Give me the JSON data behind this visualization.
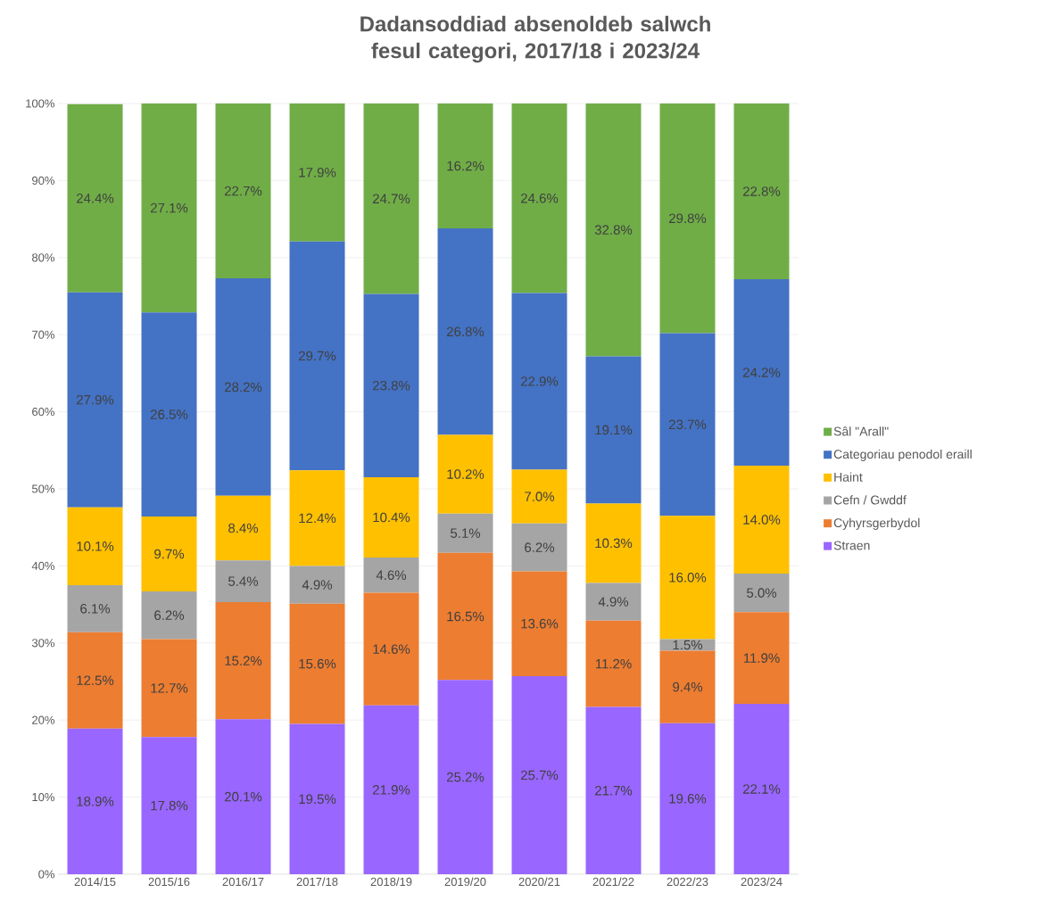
{
  "chart_data": {
    "type": "bar",
    "stacked": true,
    "title": "Dadansoddiad absenoldeb salwch fesul categori, 2017/18 i 2023/24",
    "categories": [
      "2014/15",
      "2015/16",
      "2016/17",
      "2017/18",
      "2018/19",
      "2019/20",
      "2020/21",
      "2021/22",
      "2022/23",
      "2023/24"
    ],
    "series": [
      {
        "name": "Straen",
        "color": "#9966ff",
        "values": [
          18.9,
          17.8,
          20.1,
          19.5,
          21.9,
          25.2,
          25.7,
          21.7,
          19.6,
          22.1
        ],
        "value_labels": [
          "18.9%",
          "17.8%",
          "20.1%",
          "19.5%",
          "21.9%",
          "25.2%",
          "25.7%",
          "21.7%",
          "19.6%",
          "22.1%"
        ]
      },
      {
        "name": "Cyhyrsgerbydol",
        "color": "#ed7d31",
        "values": [
          12.5,
          12.7,
          15.2,
          15.6,
          14.6,
          16.5,
          13.6,
          11.2,
          9.4,
          11.9
        ],
        "value_labels": [
          "12.5%",
          "12.7%",
          "15.2%",
          "15.6%",
          "14.6%",
          "16.5%",
          "13.6%",
          "11.2%",
          "9.4%",
          "11.9%"
        ]
      },
      {
        "name": "Cefn / Gwddf",
        "color": "#a5a5a5",
        "values": [
          6.1,
          6.2,
          5.4,
          4.9,
          4.6,
          5.1,
          6.2,
          4.9,
          1.5,
          5.0
        ],
        "value_labels": [
          "6.1%",
          "6.2%",
          "5.4%",
          "4.9%",
          "4.6%",
          "5.1%",
          "6.2%",
          "4.9%",
          "1.5%",
          "5.0%"
        ]
      },
      {
        "name": "Haint",
        "color": "#ffc000",
        "values": [
          10.1,
          9.7,
          8.4,
          12.4,
          10.4,
          10.2,
          7.0,
          10.3,
          16.0,
          14.0
        ],
        "value_labels": [
          "10.1%",
          "9.7%",
          "8.4%",
          "12.4%",
          "10.4%",
          "10.2%",
          "7.0%",
          "10.3%",
          "16.0%",
          "14.0%"
        ]
      },
      {
        "name": "Categoriau penodol eraill",
        "color": "#4472c4",
        "values": [
          27.9,
          26.5,
          28.2,
          29.7,
          23.8,
          26.8,
          22.9,
          19.1,
          23.7,
          24.2
        ],
        "value_labels": [
          "27.9%",
          "26.5%",
          "28.2%",
          "29.7%",
          "23.8%",
          "26.8%",
          "22.9%",
          "19.1%",
          "23.7%",
          "24.2%"
        ]
      },
      {
        "name": "Sâl \"Arall\"",
        "color": "#70ad47",
        "values": [
          24.4,
          27.1,
          22.7,
          17.9,
          24.7,
          16.2,
          24.6,
          32.8,
          29.8,
          22.8
        ],
        "value_labels": [
          "24.4%",
          "27.1%",
          "22.7%",
          "17.9%",
          "24.7%",
          "16.2%",
          "24.6%",
          "32.8%",
          "29.8%",
          "22.8%"
        ]
      }
    ],
    "ylim": [
      0,
      100
    ],
    "yticks": [
      {
        "value": 0,
        "label": "0%"
      },
      {
        "value": 10,
        "label": "10%"
      },
      {
        "value": 20,
        "label": "20%"
      },
      {
        "value": 30,
        "label": "30%"
      },
      {
        "value": 40,
        "label": "40%"
      },
      {
        "value": 50,
        "label": "50%"
      },
      {
        "value": 60,
        "label": "60%"
      },
      {
        "value": 70,
        "label": "70%"
      },
      {
        "value": 80,
        "label": "80%"
      },
      {
        "value": 90,
        "label": "90%"
      },
      {
        "value": 100,
        "label": "100%"
      }
    ],
    "grid": "y",
    "legend": "right"
  }
}
